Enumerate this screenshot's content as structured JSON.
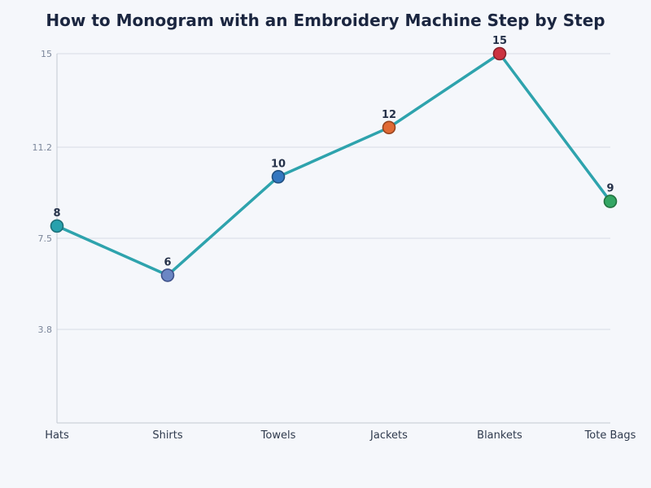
{
  "chart_data": {
    "type": "line",
    "title": "How to Monogram with an Embroidery Machine Step by Step",
    "xlabel": "",
    "ylabel": "",
    "categories": [
      "Hats",
      "Shirts",
      "Towels",
      "Jackets",
      "Blankets",
      "Tote Bags"
    ],
    "series": [
      {
        "values": [
          8,
          6,
          10,
          12,
          15,
          9
        ]
      }
    ],
    "data_labels": [
      "8",
      "6",
      "10",
      "12",
      "15",
      "9"
    ],
    "yticks": [
      3.8,
      7.5,
      11.2,
      15
    ],
    "ytick_labels": [
      "3.8",
      "7.5",
      "11.2",
      "15"
    ],
    "ylim": [
      0,
      15
    ],
    "grid": "horizontal",
    "legend": "none",
    "colors": {
      "line": "#2ea3ad",
      "points": [
        "#27a1ad",
        "#6b86c4",
        "#3477c0",
        "#e06a35",
        "#cc3340",
        "#34a664"
      ],
      "point_strokes": [
        "#1d6f78",
        "#3f528a",
        "#21507f",
        "#96441f",
        "#88212b",
        "#22723f"
      ]
    }
  }
}
